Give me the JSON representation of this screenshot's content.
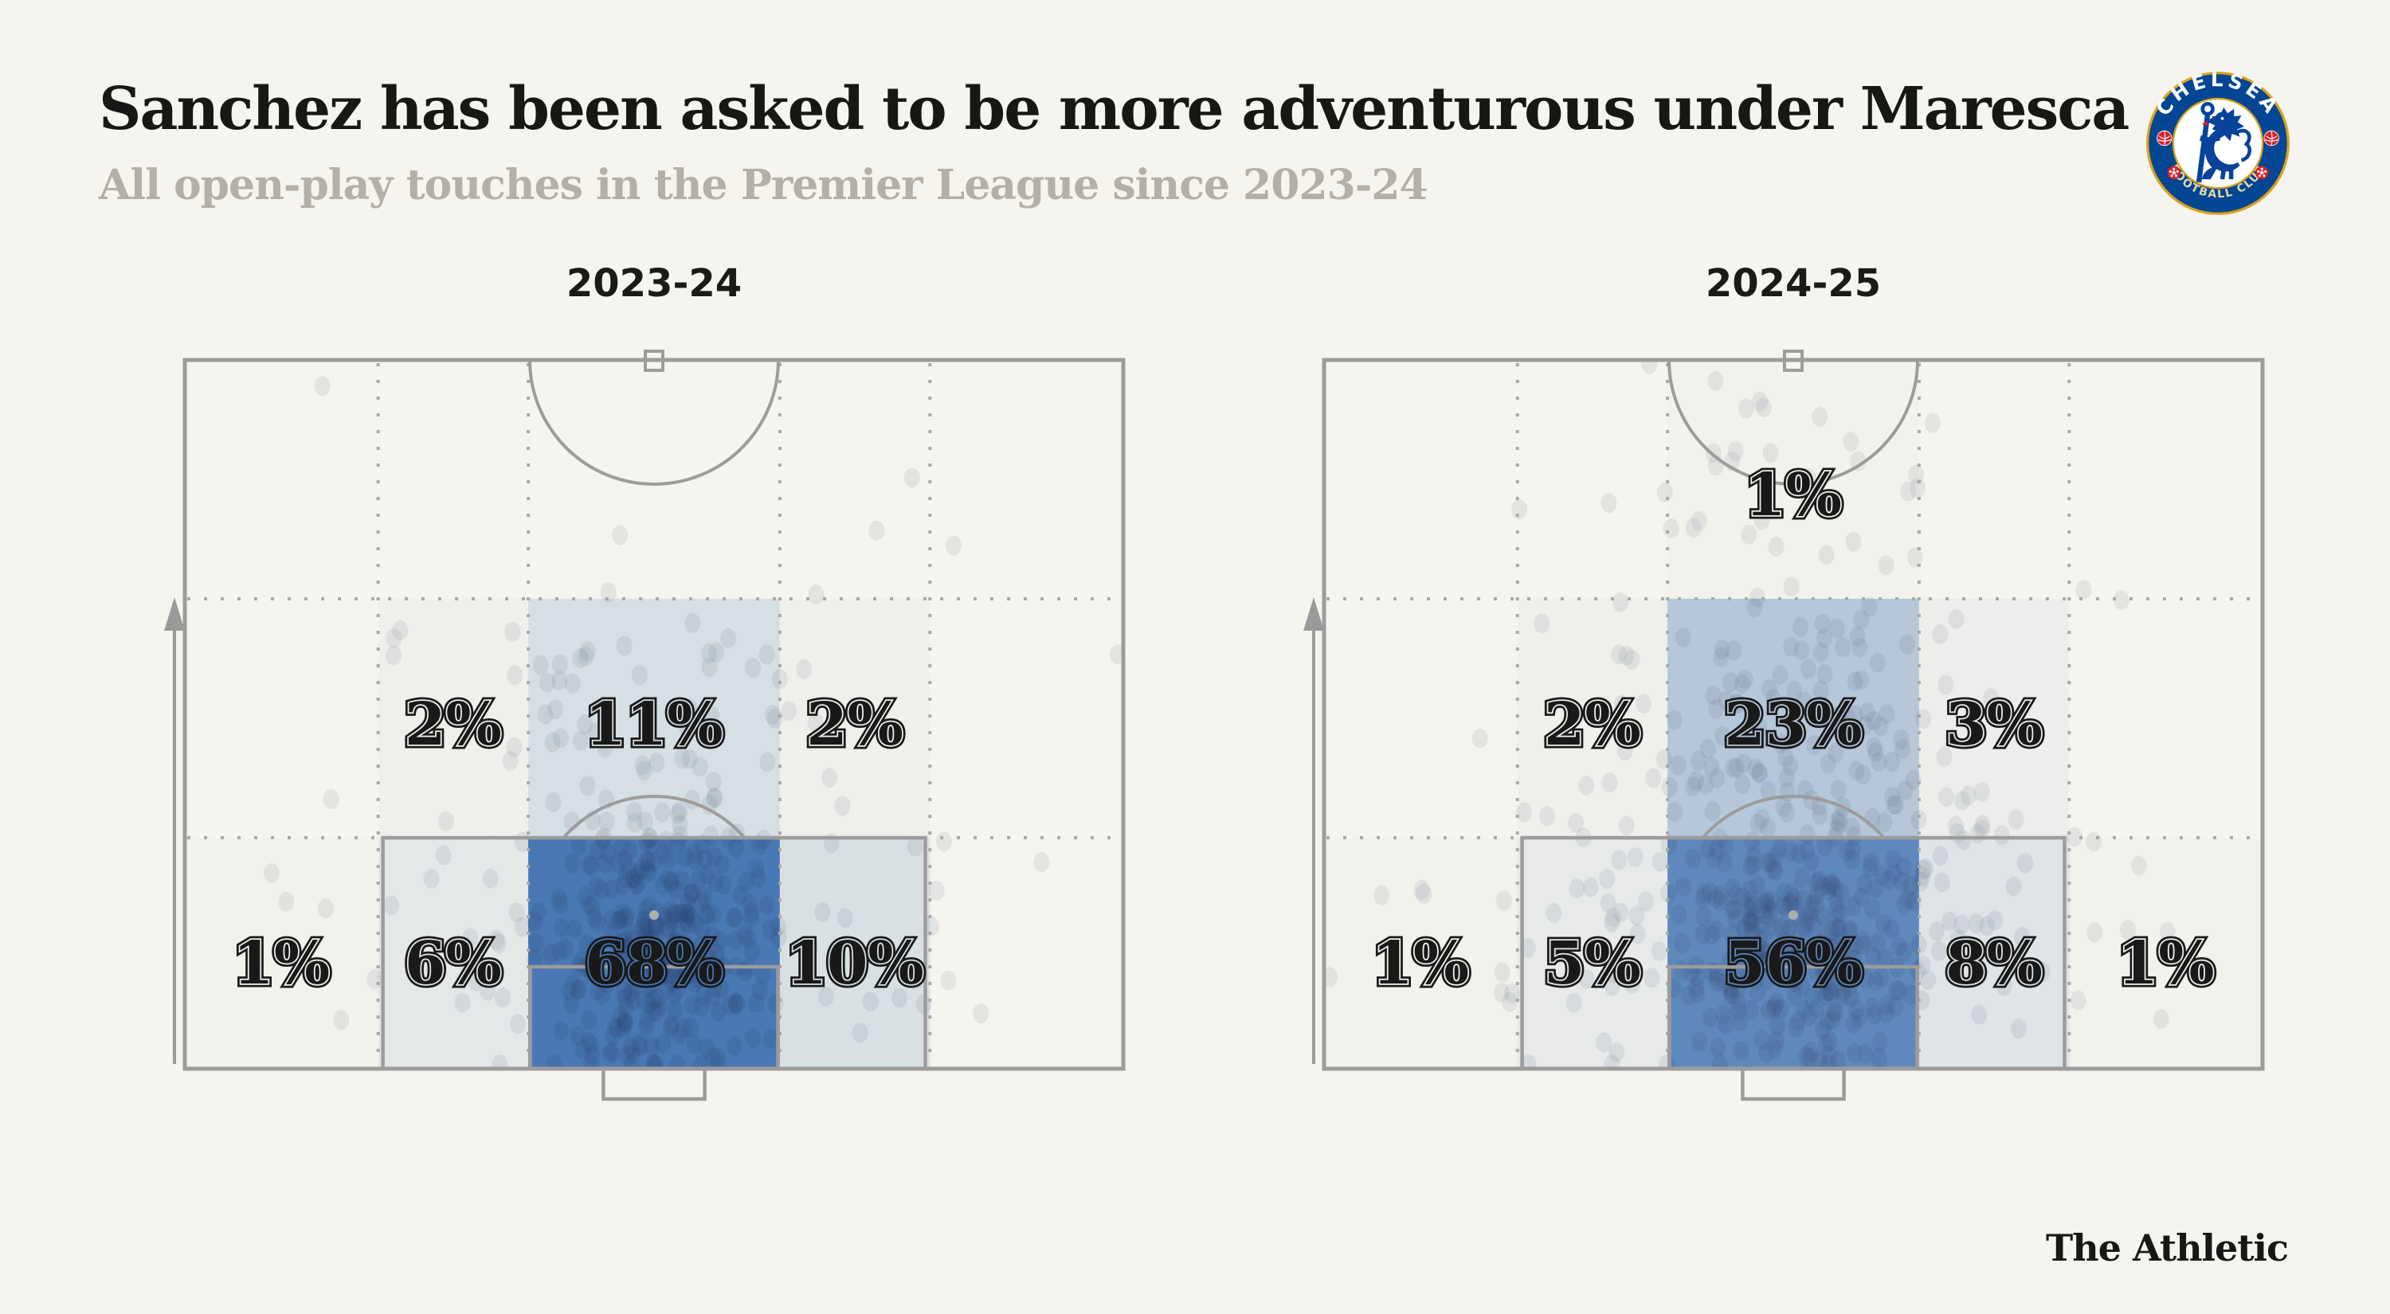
{
  "page": {
    "background": "#f5f4ee"
  },
  "header": {
    "title": "Sanchez has been asked to be more adventurous under Maresca",
    "subtitle": "All open-play touches in the Premier League since 2023-24",
    "title_color": "#181715",
    "subtitle_color": "#b3b0a8"
  },
  "badge": {
    "club": "Chelsea FC",
    "ring_top": "CHELSEA",
    "ring_bottom": "FOOTBALL CLUB",
    "blue": "#034694",
    "gold": "#d9a21c",
    "red": "#d6222a"
  },
  "footer": {
    "wordmark": "The Athletic"
  },
  "pitch_style": {
    "line_color": "#9c9c9c",
    "dotted_color": "#a9a9a9",
    "zone_base_rgb": [
      67,
      116,
      178
    ],
    "dot_color": "#7f8a9b",
    "label_ink": "#191919",
    "attack_direction": "up"
  },
  "chart_data": [
    {
      "type": "heatmap",
      "season": "2023-24",
      "pitch": "defensive half, goalkeeper touches, attacking direction up",
      "columns": [
        "left wing",
        "left half-space",
        "centre",
        "right half-space",
        "right wing"
      ],
      "bands": [
        "nearest halfway line",
        "middle of own half",
        "deepest (own goal)"
      ],
      "zones": [
        {
          "band": 1,
          "column": 1,
          "value_pct": 2,
          "label": "2%"
        },
        {
          "band": 1,
          "column": 2,
          "value_pct": 11,
          "label": "11%"
        },
        {
          "band": 1,
          "column": 3,
          "value_pct": 2,
          "label": "2%"
        },
        {
          "band": 2,
          "column": 0,
          "value_pct": 1,
          "label": "1%"
        },
        {
          "band": 2,
          "column": 1,
          "value_pct": 6,
          "label": "6%"
        },
        {
          "band": 2,
          "column": 2,
          "value_pct": 68,
          "label": "68%"
        },
        {
          "band": 2,
          "column": 3,
          "value_pct": 10,
          "label": "10%"
        }
      ]
    },
    {
      "type": "heatmap",
      "season": "2024-25",
      "pitch": "defensive half, goalkeeper touches, attacking direction up",
      "columns": [
        "left wing",
        "left half-space",
        "centre",
        "right half-space",
        "right wing"
      ],
      "bands": [
        "nearest halfway line",
        "middle of own half",
        "deepest (own goal)"
      ],
      "zones": [
        {
          "band": 0,
          "column": 2,
          "value_pct": 1,
          "label": "1%"
        },
        {
          "band": 1,
          "column": 1,
          "value_pct": 2,
          "label": "2%"
        },
        {
          "band": 1,
          "column": 2,
          "value_pct": 23,
          "label": "23%"
        },
        {
          "band": 1,
          "column": 3,
          "value_pct": 3,
          "label": "3%"
        },
        {
          "band": 2,
          "column": 0,
          "value_pct": 1,
          "label": "1%"
        },
        {
          "band": 2,
          "column": 1,
          "value_pct": 5,
          "label": "5%"
        },
        {
          "band": 2,
          "column": 2,
          "value_pct": 56,
          "label": "56%"
        },
        {
          "band": 2,
          "column": 3,
          "value_pct": 8,
          "label": "8%"
        },
        {
          "band": 2,
          "column": 4,
          "value_pct": 1,
          "label": "1%"
        }
      ]
    }
  ]
}
